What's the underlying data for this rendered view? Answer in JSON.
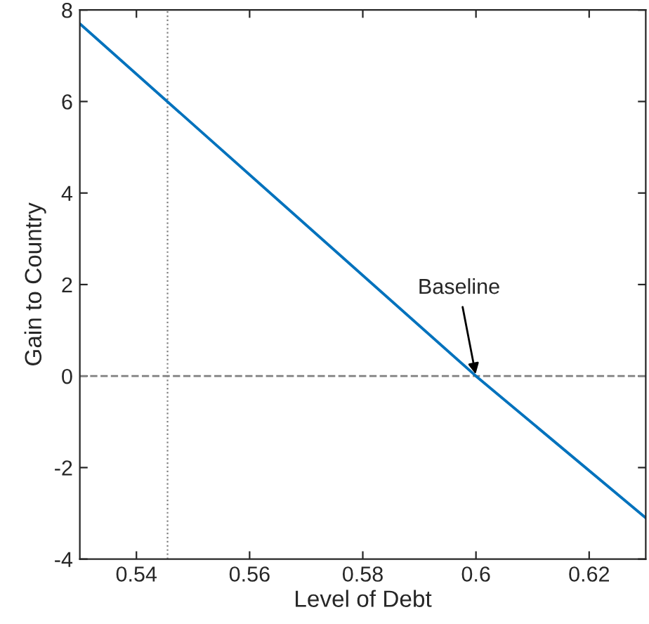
{
  "chart_data": {
    "type": "line",
    "xlabel": "Level of Debt",
    "ylabel": "Gain to Country",
    "x": [
      0.53,
      0.6,
      0.63
    ],
    "series": [
      {
        "color": "#0072bd",
        "values": [
          7.7,
          0,
          -3.1
        ]
      }
    ],
    "xlim": [
      0.53,
      0.63
    ],
    "xticks": [
      0.54,
      0.56,
      0.58,
      0.6,
      0.62
    ],
    "ylim": [
      -4,
      8
    ],
    "yticks": [
      -4,
      -2,
      0,
      2,
      4,
      6,
      8
    ],
    "ref_lines": [
      {
        "axis": "y",
        "value": 0,
        "color": "#808080",
        "line_style": "dashed"
      },
      {
        "axis": "x",
        "value": 0.5455,
        "color": "#808080",
        "line_style": "dotted"
      }
    ],
    "annotations": [
      {
        "text": "Baseline",
        "x": 0.6,
        "y": 0
      }
    ],
    "grid": false,
    "legend": false
  }
}
